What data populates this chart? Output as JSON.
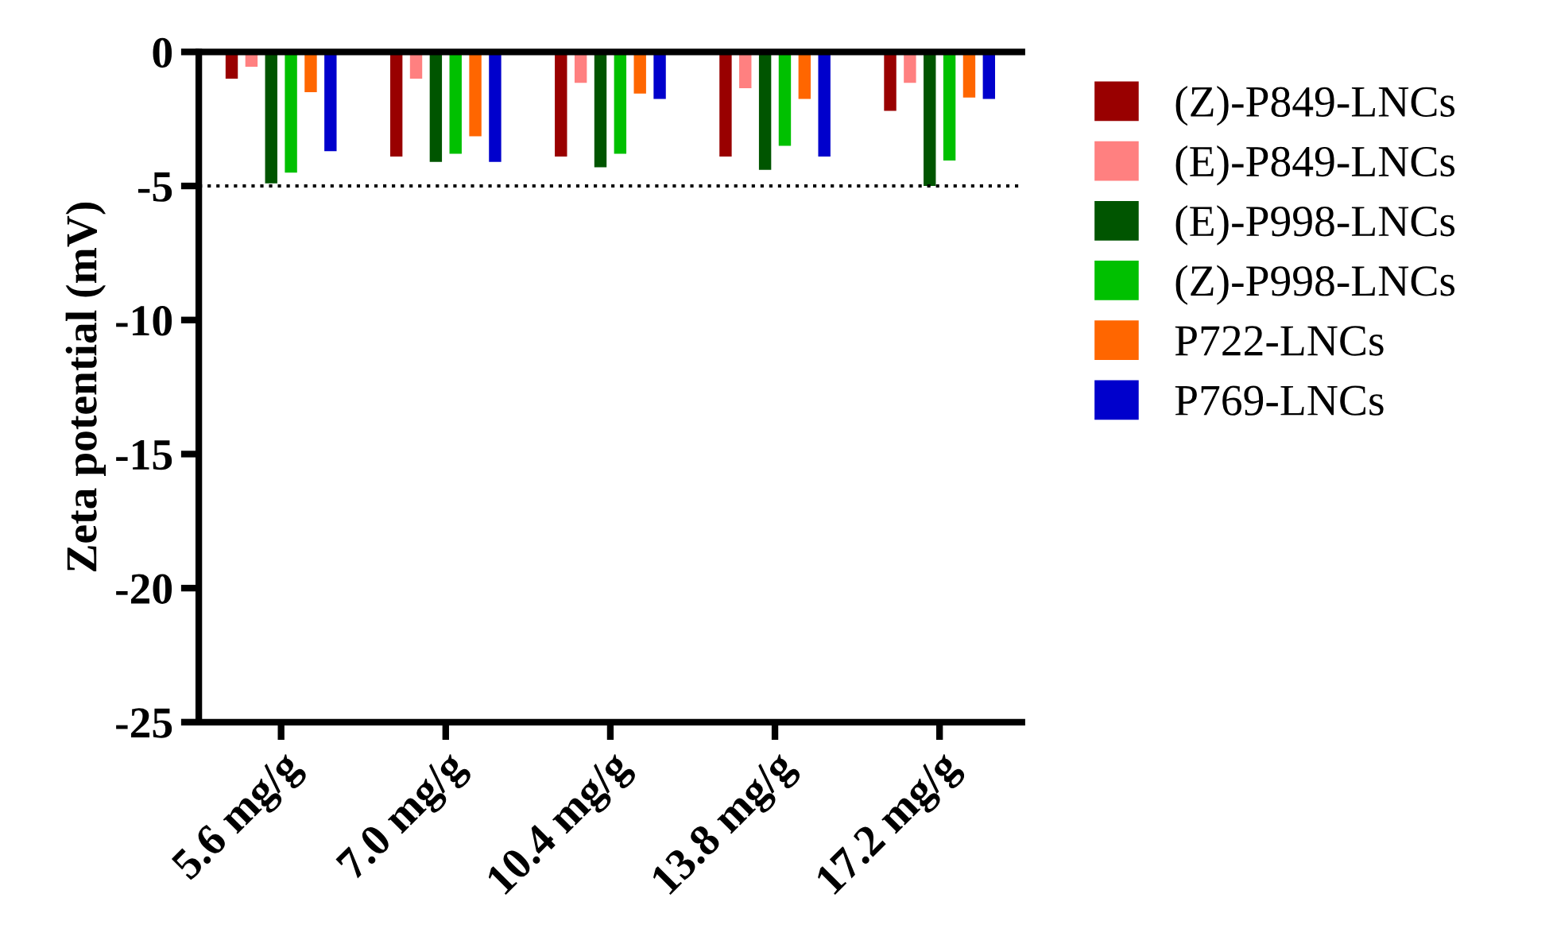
{
  "chart_data": {
    "type": "bar",
    "ylabel": "Zeta potential (mV)",
    "categories": [
      "5.6 mg/g",
      "7.0 mg/g",
      "10.4 mg/g",
      "13.8 mg/g",
      "17.2 mg/g"
    ],
    "series": [
      {
        "name": "(Z)-P849-LNCs",
        "color": "#990000",
        "values": [
          -1.0,
          -3.9,
          -3.9,
          -3.9,
          -2.2
        ]
      },
      {
        "name": "(E)-P849-LNCs",
        "color": "#ff8080",
        "values": [
          -0.55,
          -1.0,
          -1.15,
          -1.35,
          -1.15
        ]
      },
      {
        "name": "(E)-P998-LNCs",
        "color": "#005500",
        "values": [
          -4.9,
          -4.1,
          -4.3,
          -4.4,
          -5.0
        ]
      },
      {
        "name": "(Z)-P998-LNCs",
        "color": "#00c000",
        "values": [
          -4.5,
          -3.8,
          -3.8,
          -3.5,
          -4.05
        ]
      },
      {
        "name": "P722-LNCs",
        "color": "#ff6600",
        "values": [
          -1.5,
          -3.15,
          -1.55,
          -1.75,
          -1.7
        ]
      },
      {
        "name": "P769-LNCs",
        "color": "#0000cc",
        "values": [
          -3.7,
          -4.1,
          -1.75,
          -3.9,
          -1.75
        ]
      }
    ],
    "ylim": [
      -25,
      0
    ],
    "yticks": [
      0,
      -5,
      -10,
      -15,
      -20,
      -25
    ],
    "ref_lines": [
      {
        "axis": "y",
        "value": -5,
        "line_style": "dotted"
      }
    ],
    "legend": "right",
    "grid": false
  }
}
